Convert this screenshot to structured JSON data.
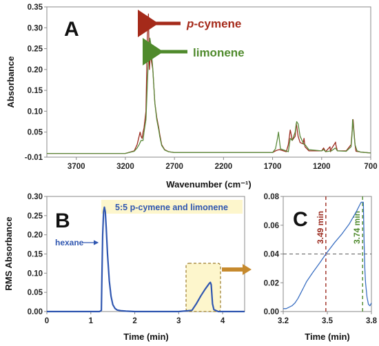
{
  "chart_data": [
    {
      "panel": "A",
      "type": "line",
      "xlabel": "Wavenumber (cm⁻¹)",
      "ylabel": "Absorbance",
      "xlim": [
        4000,
        700
      ],
      "ylim": [
        -0.01,
        0.35
      ],
      "x_ticks": [
        "3700",
        "3200",
        "2700",
        "2200",
        "1700",
        "1200",
        "700"
      ],
      "y_ticks": [
        "-0.01",
        "0.05",
        "0.10",
        "0.15",
        "0.20",
        "0.25",
        "0.30",
        "0.35"
      ],
      "colors": {
        "p_cymene": "#9b2a1e",
        "limonene": "#5a8a3a"
      },
      "annotations": [
        {
          "text": "p-cymene",
          "italic_part": "p",
          "color": "#a52a1a"
        },
        {
          "text": "limonene",
          "color": "#4f8a2c"
        }
      ],
      "series": [
        {
          "name": "p-cymene",
          "color": "#9b2a1e",
          "x": [
            4000,
            3600,
            3200,
            3110,
            3080,
            3060,
            3050,
            3040,
            3030,
            3020,
            3010,
            2990,
            2975,
            2965,
            2955,
            2945,
            2935,
            2920,
            2900,
            2880,
            2860,
            2850,
            2830,
            2800,
            2760,
            2700,
            2400,
            2000,
            1700,
            1670,
            1650,
            1630,
            1560,
            1540,
            1520,
            1515,
            1500,
            1470,
            1460,
            1455,
            1440,
            1420,
            1390,
            1380,
            1370,
            1330,
            1200,
            1180,
            1160,
            1115,
            1110,
            1100,
            1060,
            1058,
            1056,
            1040,
            950,
            900,
            890,
            880,
            870,
            860,
            850,
            820,
            800,
            750,
            700
          ],
          "y": [
            -0.001,
            -0.001,
            -0.001,
            0.005,
            0.02,
            0.04,
            0.05,
            0.04,
            0.035,
            0.05,
            0.06,
            0.1,
            0.29,
            0.333,
            0.2,
            0.24,
            0.22,
            0.2,
            0.12,
            0.085,
            0.06,
            0.045,
            0.02,
            0.008,
            0.003,
            0.001,
            0.001,
            0.001,
            0.001,
            0.005,
            0.007,
            0.008,
            0.003,
            0.02,
            0.055,
            0.05,
            0.03,
            0.04,
            0.07,
            0.065,
            0.04,
            0.025,
            0.022,
            0.035,
            0.015,
            0.005,
            0.005,
            0.012,
            0.003,
            0.015,
            0.003,
            0.01,
            0.025,
            0.026,
            0.02,
            0.005,
            0.005,
            0.02,
            0.05,
            0.08,
            0.05,
            0.02,
            0.004,
            0.003,
            0.002,
            0.001,
            0.0
          ]
        },
        {
          "name": "limonene",
          "color": "#5a8a3a",
          "x": [
            4000,
            3600,
            3200,
            3110,
            3080,
            3060,
            3040,
            3020,
            3010,
            2990,
            2970,
            2960,
            2950,
            2940,
            2930,
            2920,
            2900,
            2880,
            2860,
            2850,
            2830,
            2800,
            2760,
            2700,
            2400,
            2000,
            1700,
            1670,
            1650,
            1640,
            1620,
            1540,
            1520,
            1500,
            1470,
            1455,
            1440,
            1420,
            1380,
            1370,
            1330,
            1200,
            1180,
            1160,
            1100,
            1060,
            1040,
            950,
            900,
            890,
            885,
            880,
            860,
            840,
            800,
            750,
            700
          ],
          "y": [
            -0.001,
            -0.001,
            -0.001,
            0.004,
            0.012,
            0.02,
            0.03,
            0.03,
            0.05,
            0.08,
            0.2,
            0.24,
            0.275,
            0.26,
            0.23,
            0.2,
            0.12,
            0.08,
            0.055,
            0.04,
            0.018,
            0.007,
            0.003,
            0.001,
            0.001,
            0.001,
            0.001,
            0.01,
            0.035,
            0.05,
            0.01,
            0.003,
            0.035,
            0.03,
            0.05,
            0.075,
            0.07,
            0.04,
            0.02,
            0.02,
            0.008,
            0.005,
            0.008,
            0.003,
            0.005,
            0.012,
            0.005,
            0.004,
            0.015,
            0.045,
            0.08,
            0.07,
            0.02,
            0.005,
            0.002,
            0.001,
            0.0
          ]
        }
      ]
    },
    {
      "panel": "B",
      "type": "line",
      "xlabel": "Time (min)",
      "ylabel": "RMS Absorbance",
      "xlim": [
        0,
        4.5
      ],
      "ylim": [
        0,
        0.3
      ],
      "x_ticks": [
        "0",
        "1",
        "2",
        "3",
        "4"
      ],
      "y_ticks": [
        "0.00",
        "0.05",
        "0.10",
        "0.15",
        "0.20",
        "0.25",
        "0.30"
      ],
      "legend_box": "5:5 p-cymene and limonene",
      "annotations": [
        {
          "text": "hexane"
        }
      ],
      "series": [
        {
          "color": "#2f56b0",
          "x": [
            0,
            1.2,
            1.24,
            1.25,
            1.27,
            1.29,
            1.31,
            1.33,
            1.35,
            1.38,
            1.42,
            1.46,
            1.5,
            1.55,
            1.6,
            1.7,
            1.8,
            2.0,
            3.0,
            3.3,
            3.4,
            3.5,
            3.6,
            3.7,
            3.72,
            3.74,
            3.77,
            3.8,
            3.9,
            4.5
          ],
          "y": [
            0,
            0,
            0.003,
            0.07,
            0.2,
            0.26,
            0.272,
            0.26,
            0.22,
            0.15,
            0.08,
            0.04,
            0.018,
            0.008,
            0.004,
            0.002,
            0.001,
            0.0,
            0.0,
            0.003,
            0.02,
            0.04,
            0.058,
            0.074,
            0.076,
            0.07,
            0.02,
            0.005,
            0.0,
            0.0
          ]
        }
      ]
    },
    {
      "panel": "C",
      "type": "line",
      "xlabel": "Time (min)",
      "xlim": [
        3.2,
        3.8
      ],
      "ylim": [
        0,
        0.08
      ],
      "x_ticks": [
        "3.2",
        "3.5",
        "3.8"
      ],
      "y_ticks": [
        "0.00",
        "0.02",
        "0.04",
        "0.06",
        "0.08"
      ],
      "vlines": [
        {
          "x": 3.49,
          "label": "3.49 min",
          "color": "#9b2a1e"
        },
        {
          "x": 3.74,
          "label": "3.74 min",
          "color": "#4f8a2c"
        }
      ],
      "hline": {
        "y": 0.04
      },
      "series": [
        {
          "color": "#3a6fc2",
          "x": [
            3.2,
            3.22,
            3.24,
            3.26,
            3.28,
            3.3,
            3.32,
            3.34,
            3.36,
            3.4,
            3.45,
            3.49,
            3.55,
            3.6,
            3.65,
            3.7,
            3.72,
            3.73,
            3.745,
            3.75,
            3.755,
            3.76,
            3.77,
            3.78,
            3.79,
            3.8
          ],
          "y": [
            0.002,
            0.002,
            0.003,
            0.004,
            0.006,
            0.009,
            0.013,
            0.017,
            0.021,
            0.027,
            0.034,
            0.04,
            0.048,
            0.054,
            0.061,
            0.07,
            0.074,
            0.076,
            0.076,
            0.05,
            0.03,
            0.02,
            0.01,
            0.005,
            0.004,
            0.006
          ]
        }
      ]
    }
  ]
}
